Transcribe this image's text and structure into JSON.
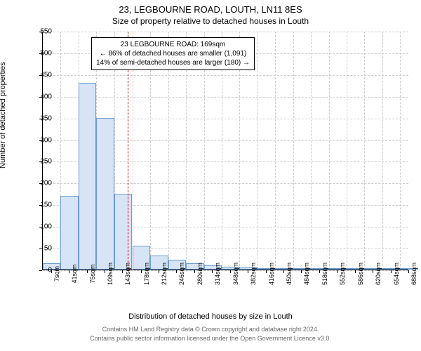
{
  "title1": "23, LEGBOURNE ROAD, LOUTH, LN11 8ES",
  "title2": "Size of property relative to detached houses in Louth",
  "yaxis_label": "Number of detached properties",
  "xaxis_label": "Distribution of detached houses by size in Louth",
  "footer1": "Contains HM Land Registry data © Crown copyright and database right 2024.",
  "footer2": "Contains public sector information licensed under the Open Government Licence v3.0.",
  "chart": {
    "type": "histogram",
    "ylim": [
      0,
      550
    ],
    "ytick_step": 50,
    "xlim": [
      7,
      705
    ],
    "xticks": [
      7,
      41,
      75,
      109,
      143,
      178,
      212,
      246,
      280,
      314,
      348,
      382,
      416,
      450,
      484,
      518,
      552,
      586,
      620,
      654,
      688
    ],
    "xtick_suffix": "sqm",
    "bar_fill": "#d6e4f5",
    "bar_border": "#6b9bd1",
    "grid_color": "#cccccc",
    "background_color": "#ffffff",
    "vline_x": 169,
    "vline_color": "#cc0000",
    "bars": [
      {
        "x": 7,
        "v": 15
      },
      {
        "x": 41,
        "v": 170
      },
      {
        "x": 75,
        "v": 430
      },
      {
        "x": 109,
        "v": 350
      },
      {
        "x": 143,
        "v": 175
      },
      {
        "x": 178,
        "v": 55
      },
      {
        "x": 212,
        "v": 32
      },
      {
        "x": 246,
        "v": 22
      },
      {
        "x": 280,
        "v": 14
      },
      {
        "x": 314,
        "v": 10
      },
      {
        "x": 348,
        "v": 6
      },
      {
        "x": 382,
        "v": 6
      },
      {
        "x": 416,
        "v": 4
      },
      {
        "x": 450,
        "v": 2
      },
      {
        "x": 484,
        "v": 2
      },
      {
        "x": 518,
        "v": 2
      },
      {
        "x": 552,
        "v": 1
      },
      {
        "x": 586,
        "v": 1
      },
      {
        "x": 620,
        "v": 1
      },
      {
        "x": 654,
        "v": 1
      },
      {
        "x": 688,
        "v": 1
      }
    ]
  },
  "annotation": {
    "line1": "23 LEGBOURNE ROAD: 169sqm",
    "line2": "← 86% of detached houses are smaller (1,091)",
    "line3": "14% of semi-detached houses are larger (180) →"
  }
}
